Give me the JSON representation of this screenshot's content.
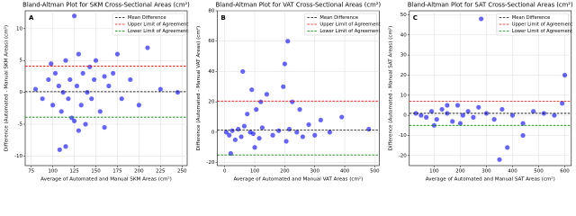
{
  "chart_data": [
    {
      "type": "scatter",
      "title": "Bland-Altman Plot for SKM Cross-Sectional Areas (cm²)",
      "panel_label": "A",
      "xlabel": "Average of Automated and Manual SKM Areas (cm²)",
      "ylabel": "Difference (Automated - Manual SKM Areas) (cm²)",
      "color": "#0000ff",
      "grid": true,
      "legend": "upper right",
      "x": [
        80,
        88,
        95,
        100,
        103,
        107,
        110,
        112,
        115,
        118,
        120,
        122,
        125,
        128,
        130,
        133,
        135,
        138,
        140,
        143,
        145,
        148,
        150,
        155,
        160,
        165,
        170,
        175,
        180,
        190,
        200,
        210,
        225,
        245,
        108,
        115,
        125,
        130,
        160,
        98
      ],
      "values": [
        0.5,
        -1,
        2,
        -2,
        3,
        1,
        -3,
        0,
        5,
        -1,
        2,
        -4,
        12,
        1,
        6,
        -2,
        3,
        -5,
        0,
        4,
        -1,
        2,
        5,
        -3,
        -5.5,
        1,
        3,
        6,
        -1,
        2,
        -2,
        7,
        0.5,
        0,
        -9,
        -8.5,
        -4.5,
        -6,
        2.5,
        4.5
      ],
      "lines": [
        {
          "name": "Mean Difference",
          "value": 0.1,
          "color": "#000000"
        },
        {
          "name": "Upper Limit of Agreement",
          "value": 4.1,
          "color": "#ff0000"
        },
        {
          "name": "Lower Limit of Agreement",
          "value": -3.9,
          "color": "#008000"
        }
      ],
      "xlim": [
        68,
        256
      ],
      "xticks": [
        75,
        100,
        125,
        150,
        175,
        200,
        225,
        250
      ],
      "ylim": [
        -11.5,
        12.8
      ],
      "yticks": [
        -10,
        -5,
        0,
        5,
        10
      ]
    },
    {
      "type": "scatter",
      "title": "Bland-Altman Plot for VAT Cross-Sectional Areas (cm²)",
      "panel_label": "B",
      "xlabel": "Average of Automated and Manual VAT Areas (cm²)",
      "ylabel": "Difference (Automated - Manual VAT Areas) (cm²)",
      "color": "#0000ff",
      "grid": true,
      "legend": "upper right",
      "x": [
        5,
        15,
        25,
        35,
        45,
        55,
        65,
        75,
        85,
        95,
        105,
        115,
        125,
        140,
        160,
        180,
        195,
        205,
        215,
        225,
        240,
        260,
        280,
        300,
        320,
        350,
        390,
        480,
        20,
        60,
        90,
        120,
        200,
        210,
        100,
        250
      ],
      "values": [
        0,
        -2,
        1,
        -5,
        2,
        -3,
        4,
        12,
        0,
        -1,
        15,
        -4,
        3,
        25,
        -2,
        1,
        30,
        -6,
        2,
        20,
        0,
        -3,
        5,
        -2,
        8,
        0,
        10,
        2,
        -14,
        40,
        28,
        20,
        45,
        60,
        -10,
        15
      ],
      "lines": [
        {
          "name": "Mean Difference",
          "value": 1.5,
          "color": "#000000"
        },
        {
          "name": "Upper Limit of Agreement",
          "value": 20.5,
          "color": "#ff0000"
        },
        {
          "name": "Lower Limit of Agreement",
          "value": -15,
          "color": "#008000"
        }
      ],
      "xlim": [
        -25,
        515
      ],
      "xticks": [
        0,
        100,
        200,
        300,
        400,
        500
      ],
      "ylim": [
        -22,
        80
      ],
      "yticks": [
        -20,
        0,
        20,
        40,
        60,
        80
      ]
    },
    {
      "type": "scatter",
      "title": "Bland-Altman Plot for SAT Cross-Sectional Areas (cm²)",
      "panel_label": "C",
      "xlabel": "Average of Automated and Manual SAT Areas (cm²)",
      "ylabel": "Difference (Automated - Manual SAT Areas) (cm²)",
      "color": "#0000ff",
      "grid": true,
      "legend": "upper right",
      "x": [
        30,
        50,
        70,
        90,
        110,
        130,
        150,
        170,
        190,
        210,
        230,
        250,
        270,
        300,
        330,
        360,
        400,
        440,
        480,
        520,
        560,
        600,
        280,
        350,
        380,
        440,
        150,
        200,
        100,
        590
      ],
      "values": [
        1,
        0,
        -1,
        2,
        -2,
        3,
        1,
        -3,
        5,
        0,
        2,
        -1,
        4,
        1,
        -2,
        3,
        0,
        -4,
        2,
        1,
        0,
        20,
        48,
        -22,
        -16,
        -10,
        5,
        -4,
        -5,
        6
      ],
      "lines": [
        {
          "name": "Mean Difference",
          "value": 1,
          "color": "#000000"
        },
        {
          "name": "Upper Limit of Agreement",
          "value": 7,
          "color": "#ff0000"
        },
        {
          "name": "Lower Limit of Agreement",
          "value": -5,
          "color": "#008000"
        }
      ],
      "xlim": [
        5,
        625
      ],
      "xticks": [
        100,
        200,
        300,
        400,
        500,
        600
      ],
      "ylim": [
        -25,
        52
      ],
      "yticks": [
        -20,
        -10,
        0,
        10,
        20,
        30,
        40,
        50
      ]
    }
  ]
}
